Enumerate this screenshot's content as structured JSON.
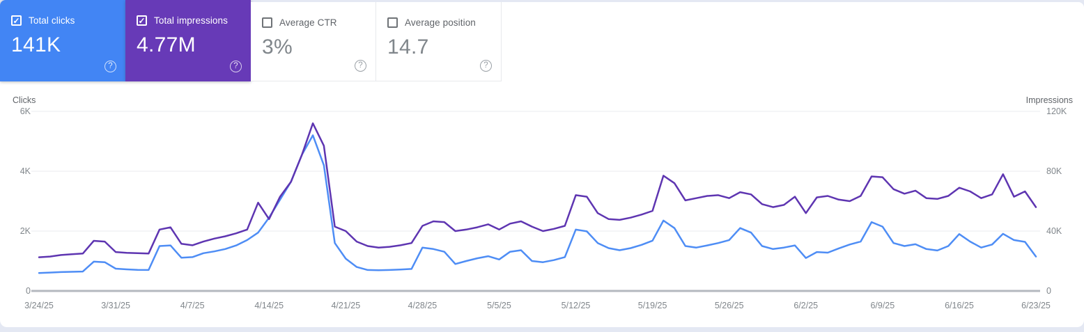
{
  "page": {
    "background_color": "#e4e8f3",
    "panel_color": "#ffffff",
    "check_glyph": "✓",
    "help_glyph": "?"
  },
  "cards": [
    {
      "label": "Total clicks",
      "value": "141K",
      "checked": true,
      "selected": true,
      "background": "#4285f4"
    },
    {
      "label": "Total impressions",
      "value": "4.77M",
      "checked": true,
      "selected": true,
      "background": "#673ab7"
    },
    {
      "label": "Average CTR",
      "value": "3%",
      "checked": false,
      "selected": false,
      "background": "#ffffff"
    },
    {
      "label": "Average position",
      "value": "14.7",
      "checked": false,
      "selected": false,
      "background": "#ffffff"
    }
  ],
  "chart_data": {
    "type": "line",
    "grid": true,
    "start_date": "3/24/25",
    "end_date": "6/23/25",
    "left_axis": {
      "title": "Clicks",
      "max": 6000,
      "tick_values": [
        0,
        2000,
        4000,
        6000
      ],
      "tick_labels": [
        "0",
        "2K",
        "4K",
        "6K"
      ]
    },
    "right_axis": {
      "title": "Impressions",
      "max": 120000,
      "tick_values": [
        0,
        40000,
        80000,
        120000
      ],
      "tick_labels": [
        "0",
        "40K",
        "80K",
        "120K"
      ]
    },
    "x_tick_days": [
      0,
      7,
      14,
      21,
      28,
      35,
      42,
      49,
      56,
      63,
      70,
      77,
      84,
      91
    ],
    "x_tick_labels": [
      "3/24/25",
      "3/31/25",
      "4/7/25",
      "4/14/25",
      "4/21/25",
      "4/28/25",
      "5/5/25",
      "5/12/25",
      "5/19/25",
      "5/26/25",
      "6/2/25",
      "6/9/25",
      "6/16/25",
      "6/23/25"
    ],
    "series": [
      {
        "name": "Total clicks",
        "axis": "left",
        "color": "#4e8df5",
        "values": [
          600,
          615,
          630,
          640,
          650,
          980,
          960,
          745,
          720,
          705,
          700,
          1500,
          1520,
          1110,
          1130,
          1260,
          1320,
          1400,
          1520,
          1700,
          1950,
          2450,
          3050,
          3650,
          4550,
          5200,
          4200,
          1600,
          1080,
          800,
          700,
          690,
          700,
          715,
          735,
          1450,
          1400,
          1310,
          900,
          1000,
          1090,
          1160,
          1050,
          1310,
          1360,
          1000,
          960,
          1030,
          1130,
          2050,
          1990,
          1600,
          1430,
          1360,
          1430,
          1540,
          1680,
          2350,
          2100,
          1500,
          1450,
          1520,
          1600,
          1700,
          2100,
          1950,
          1500,
          1400,
          1450,
          1520,
          1100,
          1300,
          1280,
          1420,
          1550,
          1650,
          2300,
          2150,
          1600,
          1500,
          1560,
          1400,
          1350,
          1500,
          1900,
          1650,
          1450,
          1550,
          1910,
          1700,
          1640,
          1150
        ]
      },
      {
        "name": "Total impressions",
        "axis": "right",
        "color": "#5e35b1",
        "values": [
          22500,
          23000,
          24000,
          24500,
          25000,
          33500,
          33000,
          26000,
          25500,
          25200,
          25000,
          41000,
          42500,
          31500,
          30500,
          33000,
          35000,
          36500,
          38500,
          41000,
          59000,
          48000,
          63000,
          73000,
          91000,
          112000,
          97000,
          43000,
          40000,
          33000,
          30000,
          29000,
          29500,
          30500,
          32000,
          43500,
          46500,
          46000,
          40000,
          41000,
          42500,
          44500,
          41000,
          45000,
          46500,
          43000,
          40000,
          41500,
          43500,
          64000,
          63000,
          52000,
          48000,
          47500,
          49000,
          51000,
          53500,
          77000,
          72000,
          60500,
          62000,
          63500,
          64000,
          62000,
          66000,
          64500,
          58000,
          56000,
          57500,
          63000,
          52000,
          62500,
          63500,
          61000,
          60000,
          63500,
          76500,
          76000,
          68000,
          65000,
          67000,
          62000,
          61500,
          63500,
          69000,
          66500,
          62000,
          64500,
          78000,
          63000,
          66500,
          56000
        ]
      }
    ],
    "style": {
      "gridline_color": "#e9ebef",
      "zero_axis_color": "#b4b8bf",
      "tick_text_color": "#80868b",
      "axis_title_color": "#5f6368"
    }
  }
}
